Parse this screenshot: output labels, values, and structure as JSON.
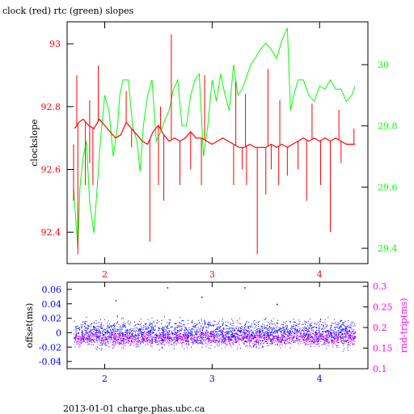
{
  "page": {
    "title": "clock (red) rtc (green) slopes",
    "footer": "2013-01-01 charge.phas.ubc.ca"
  },
  "colors": {
    "red": "#ff0000",
    "green": "#00ff00",
    "blue": "#0000ff",
    "magenta": "#ff00ff",
    "axis": "#000000"
  },
  "chart_data": [
    {
      "type": "line",
      "title": "clock (red) rtc (green) slopes",
      "xlabel": "",
      "ylabel": "clockslope",
      "y2label": "",
      "xlim": [
        1.65,
        4.45
      ],
      "ylim": [
        92.3,
        93.07
      ],
      "y2lim": [
        29.35,
        30.14
      ],
      "x_ticks": [
        2,
        3,
        4
      ],
      "y_ticks": [
        92.4,
        92.6,
        92.8,
        93
      ],
      "y2_ticks": [
        29.4,
        29.6,
        29.8,
        30
      ],
      "x_tick_labels": [
        "2",
        "3",
        "4"
      ],
      "y_tick_labels": [
        "92.4",
        "92.6",
        "92.8",
        "93"
      ],
      "y2_tick_labels": [
        "29.4",
        "29.6",
        "29.8",
        "30"
      ],
      "series": [
        {
          "name": "clock",
          "axis": "left",
          "color": "#ff0000",
          "x": [
            1.72,
            1.76,
            1.8,
            1.85,
            1.9,
            1.95,
            2.0,
            2.05,
            2.1,
            2.15,
            2.2,
            2.25,
            2.3,
            2.35,
            2.4,
            2.45,
            2.5,
            2.55,
            2.6,
            2.65,
            2.7,
            2.75,
            2.8,
            2.85,
            2.9,
            2.95,
            3.0,
            3.05,
            3.1,
            3.15,
            3.2,
            3.25,
            3.3,
            3.35,
            3.4,
            3.45,
            3.5,
            3.55,
            3.6,
            3.65,
            3.7,
            3.75,
            3.8,
            3.85,
            3.9,
            3.95,
            4.0,
            4.05,
            4.1,
            4.15,
            4.2,
            4.25,
            4.3,
            4.33
          ],
          "y": [
            92.73,
            92.75,
            92.76,
            92.74,
            92.73,
            92.76,
            92.74,
            92.72,
            92.7,
            92.71,
            92.75,
            92.73,
            92.71,
            92.69,
            92.68,
            92.72,
            92.74,
            92.71,
            92.69,
            92.7,
            92.69,
            92.7,
            92.72,
            92.7,
            92.7,
            92.69,
            92.68,
            92.69,
            92.7,
            92.69,
            92.68,
            92.67,
            92.67,
            92.68,
            92.67,
            92.67,
            92.67,
            92.68,
            92.67,
            92.68,
            92.67,
            92.68,
            92.69,
            92.7,
            92.69,
            92.7,
            92.69,
            92.7,
            92.69,
            92.7,
            92.69,
            92.68,
            92.68,
            92.68
          ]
        },
        {
          "name": "rtc",
          "axis": "right",
          "color": "#00ff00",
          "x": [
            1.71,
            1.73,
            1.75,
            1.77,
            1.8,
            1.83,
            1.86,
            1.88,
            1.9,
            1.93,
            1.96,
            2.0,
            2.04,
            2.08,
            2.12,
            2.14,
            2.17,
            2.22,
            2.26,
            2.3,
            2.33,
            2.36,
            2.4,
            2.44,
            2.48,
            2.52,
            2.56,
            2.6,
            2.64,
            2.68,
            2.72,
            2.76,
            2.8,
            2.84,
            2.88,
            2.92,
            2.96,
            3.0,
            3.04,
            3.08,
            3.12,
            3.16,
            3.2,
            3.24,
            3.28,
            3.32,
            3.36,
            3.4,
            3.45,
            3.5,
            3.55,
            3.6,
            3.65,
            3.7,
            3.73,
            3.76,
            3.8,
            3.85,
            3.9,
            3.95,
            4.0,
            4.05,
            4.1,
            4.15,
            4.2,
            4.25,
            4.3,
            4.33
          ],
          "y": [
            29.6,
            29.5,
            29.4,
            29.6,
            29.7,
            29.75,
            29.55,
            29.5,
            29.45,
            29.6,
            29.75,
            29.9,
            29.85,
            29.7,
            29.8,
            29.9,
            29.95,
            29.95,
            29.8,
            29.75,
            29.65,
            29.8,
            29.9,
            29.95,
            29.75,
            29.78,
            29.82,
            29.85,
            29.92,
            29.95,
            29.8,
            29.8,
            29.9,
            29.95,
            29.97,
            29.7,
            29.8,
            29.95,
            29.88,
            29.97,
            29.9,
            29.85,
            30.0,
            29.9,
            29.92,
            29.96,
            30.0,
            30.02,
            30.05,
            30.07,
            30.05,
            30.02,
            30.08,
            30.12,
            29.85,
            29.9,
            29.95,
            29.95,
            29.9,
            29.88,
            29.93,
            29.92,
            29.95,
            29.92,
            29.92,
            29.88,
            29.9,
            29.93
          ]
        }
      ],
      "spikes_down": [
        [
          1.71,
          92.5
        ],
        [
          1.75,
          92.33
        ],
        [
          1.82,
          92.55
        ],
        [
          1.86,
          92.62
        ],
        [
          1.89,
          92.55
        ],
        [
          2.25,
          92.67
        ],
        [
          2.42,
          92.37
        ],
        [
          2.5,
          92.55
        ],
        [
          2.55,
          92.5
        ],
        [
          2.7,
          92.55
        ],
        [
          2.8,
          92.6
        ],
        [
          2.9,
          92.55
        ],
        [
          3.2,
          92.55
        ],
        [
          3.28,
          92.6
        ],
        [
          3.32,
          92.55
        ],
        [
          3.42,
          92.33
        ],
        [
          3.5,
          92.52
        ],
        [
          3.55,
          92.6
        ],
        [
          3.62,
          92.55
        ],
        [
          3.7,
          92.58
        ],
        [
          3.8,
          92.6
        ],
        [
          3.88,
          92.5
        ],
        [
          4.01,
          92.55
        ],
        [
          4.1,
          92.4
        ],
        [
          4.2,
          92.62
        ]
      ],
      "spikes_up": [
        [
          1.74,
          92.9
        ],
        [
          1.86,
          92.82
        ],
        [
          1.94,
          92.93
        ],
        [
          2.2,
          92.85
        ],
        [
          2.52,
          92.8
        ],
        [
          2.62,
          93.03
        ],
        [
          2.93,
          92.9
        ],
        [
          3.22,
          92.88
        ],
        [
          3.31,
          92.84
        ],
        [
          3.52,
          92.92
        ],
        [
          3.63,
          92.82
        ],
        [
          3.93,
          92.81
        ],
        [
          4.18,
          92.79
        ],
        [
          4.32,
          92.73
        ]
      ]
    },
    {
      "type": "scatter",
      "xlabel": "",
      "ylabel": "offset(ms)",
      "y2label": "rnd-trip(ms)",
      "xlim": [
        1.65,
        4.45
      ],
      "ylim": [
        -0.05,
        0.07
      ],
      "y2lim": [
        0.1,
        0.31
      ],
      "x_ticks": [
        2,
        3,
        4
      ],
      "y_ticks": [
        -0.04,
        -0.02,
        0,
        0.02,
        0.04,
        0.06
      ],
      "y2_ticks": [
        0.1,
        0.15,
        0.2,
        0.25,
        0.3
      ],
      "x_tick_labels": [
        "2",
        "3",
        "4"
      ],
      "y_tick_labels": [
        "-0.04",
        "-0.02",
        "0",
        "0.02",
        "0.04",
        "0.06"
      ],
      "y2_tick_labels": [
        "0.1",
        "0.15",
        "0.2",
        "0.25",
        "0.3"
      ],
      "series": [
        {
          "name": "offset",
          "axis": "left",
          "color": "#0000ff",
          "x_range": [
            1.71,
            4.33
          ],
          "center": 0.0,
          "spread": 0.02,
          "n": 2600
        },
        {
          "name": "rnd-trip",
          "axis": "right",
          "color": "#ff00ff",
          "x_range": [
            1.71,
            4.33
          ],
          "center": 0.175,
          "spread": 0.02,
          "n": 1800
        }
      ]
    }
  ]
}
